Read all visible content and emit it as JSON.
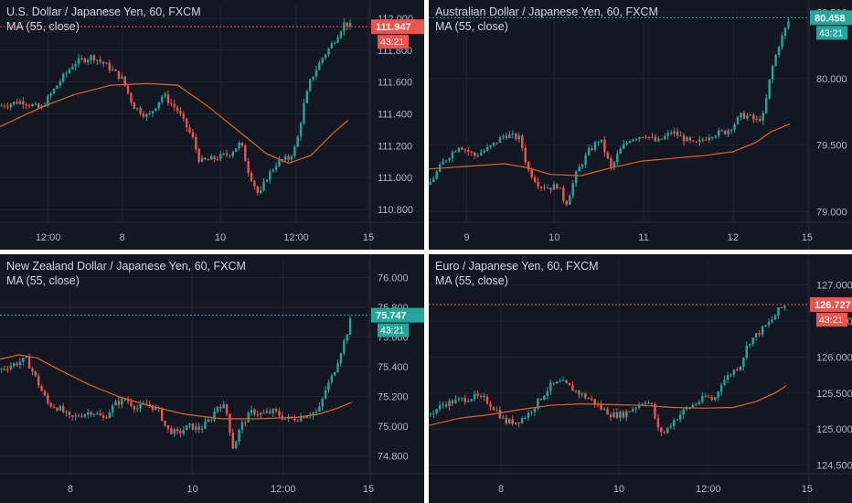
{
  "colors": {
    "background": "#131722",
    "grid": "#1f2433",
    "text": "#b2b5be",
    "up": "#26a69a",
    "down": "#ef5350",
    "ma": "#e0622a",
    "separator": "#ffffff"
  },
  "panels": [
    {
      "id": "usdjpy",
      "title": "U.S. Dollar / Japanese Yen, 60, FXCM",
      "indicator": "MA (55, close)",
      "price_label": "111.947",
      "countdown": "43:21",
      "label_color": "#ef5350",
      "line_color": "#ef5350",
      "chart_data": {
        "type": "candlestick",
        "ylim": [
          110.72,
          112.08
        ],
        "y_ticks": [
          "110.800",
          "111.000",
          "111.200",
          "111.400",
          "111.600",
          "111.800",
          "112.000"
        ],
        "x_ticks": [
          {
            "label": "12:00",
            "pos": 0.13
          },
          {
            "label": "8",
            "pos": 0.33
          },
          {
            "label": "10",
            "pos": 0.595
          },
          {
            "label": "12:00",
            "pos": 0.8
          },
          {
            "label": "15",
            "pos": 0.995
          }
        ],
        "last_price": 111.947,
        "close_path": [
          [
            0,
            111.45
          ],
          [
            0.06,
            111.48
          ],
          [
            0.11,
            111.43
          ],
          [
            0.16,
            111.6
          ],
          [
            0.2,
            111.72
          ],
          [
            0.25,
            111.76
          ],
          [
            0.29,
            111.7
          ],
          [
            0.33,
            111.62
          ],
          [
            0.36,
            111.45
          ],
          [
            0.4,
            111.38
          ],
          [
            0.44,
            111.52
          ],
          [
            0.48,
            111.42
          ],
          [
            0.52,
            111.25
          ],
          [
            0.54,
            111.1
          ],
          [
            0.58,
            111.12
          ],
          [
            0.62,
            111.15
          ],
          [
            0.65,
            111.22
          ],
          [
            0.67,
            111.05
          ],
          [
            0.7,
            110.88
          ],
          [
            0.72,
            111.0
          ],
          [
            0.75,
            111.1
          ],
          [
            0.78,
            111.12
          ],
          [
            0.8,
            111.2
          ],
          [
            0.82,
            111.45
          ],
          [
            0.84,
            111.62
          ],
          [
            0.87,
            111.75
          ],
          [
            0.9,
            111.85
          ],
          [
            0.93,
            111.97
          ],
          [
            0.95,
            111.947
          ]
        ],
        "ma_path": [
          [
            0,
            111.32
          ],
          [
            0.12,
            111.45
          ],
          [
            0.2,
            111.52
          ],
          [
            0.3,
            111.58
          ],
          [
            0.4,
            111.59
          ],
          [
            0.48,
            111.58
          ],
          [
            0.56,
            111.45
          ],
          [
            0.64,
            111.3
          ],
          [
            0.72,
            111.15
          ],
          [
            0.78,
            111.09
          ],
          [
            0.84,
            111.14
          ],
          [
            0.9,
            111.28
          ],
          [
            0.94,
            111.36
          ]
        ]
      }
    },
    {
      "id": "audjpy",
      "title": "Australian Dollar / Japanese Yen, 60, FXCM",
      "indicator": "MA (55, close)",
      "price_label": "80.458",
      "countdown": "43:21",
      "label_color": "#26a69a",
      "line_color": "#26a69a",
      "chart_data": {
        "type": "candlestick",
        "ylim": [
          78.92,
          80.55
        ],
        "y_ticks": [
          "79.000",
          "79.500",
          "80.000",
          "80.500"
        ],
        "x_ticks": [
          {
            "label": "9",
            "pos": 0.1
          },
          {
            "label": "10",
            "pos": 0.33
          },
          {
            "label": "11",
            "pos": 0.565
          },
          {
            "label": "12",
            "pos": 0.8
          },
          {
            "label": "15",
            "pos": 0.995
          }
        ],
        "last_price": 80.458,
        "close_path": [
          [
            0,
            79.2
          ],
          [
            0.04,
            79.38
          ],
          [
            0.08,
            79.5
          ],
          [
            0.12,
            79.42
          ],
          [
            0.16,
            79.48
          ],
          [
            0.2,
            79.58
          ],
          [
            0.24,
            79.55
          ],
          [
            0.26,
            79.32
          ],
          [
            0.29,
            79.2
          ],
          [
            0.32,
            79.18
          ],
          [
            0.34,
            79.2
          ],
          [
            0.36,
            79.05
          ],
          [
            0.39,
            79.3
          ],
          [
            0.42,
            79.45
          ],
          [
            0.45,
            79.55
          ],
          [
            0.48,
            79.32
          ],
          [
            0.5,
            79.45
          ],
          [
            0.53,
            79.55
          ],
          [
            0.57,
            79.58
          ],
          [
            0.6,
            79.52
          ],
          [
            0.64,
            79.6
          ],
          [
            0.67,
            79.55
          ],
          [
            0.7,
            79.5
          ],
          [
            0.74,
            79.58
          ],
          [
            0.78,
            79.6
          ],
          [
            0.8,
            79.65
          ],
          [
            0.82,
            79.72
          ],
          [
            0.84,
            79.72
          ],
          [
            0.86,
            79.68
          ],
          [
            0.88,
            79.72
          ],
          [
            0.9,
            80.05
          ],
          [
            0.92,
            80.25
          ],
          [
            0.95,
            80.458
          ]
        ],
        "ma_path": [
          [
            0,
            79.32
          ],
          [
            0.1,
            79.34
          ],
          [
            0.2,
            79.36
          ],
          [
            0.26,
            79.33
          ],
          [
            0.32,
            79.28
          ],
          [
            0.4,
            79.27
          ],
          [
            0.48,
            79.33
          ],
          [
            0.56,
            79.38
          ],
          [
            0.64,
            79.4
          ],
          [
            0.72,
            79.42
          ],
          [
            0.8,
            79.45
          ],
          [
            0.86,
            79.52
          ],
          [
            0.9,
            79.6
          ],
          [
            0.95,
            79.66
          ]
        ]
      }
    },
    {
      "id": "nzdjpy",
      "title": "New Zealand Dollar / Japanese Yen, 60, FXCM",
      "indicator": "MA (55, close)",
      "price_label": "75.747",
      "countdown": "43:21",
      "label_color": "#26a69a",
      "line_color": "#26a69a",
      "chart_data": {
        "type": "candlestick",
        "ylim": [
          74.68,
          76.12
        ],
        "y_ticks": [
          "74.800",
          "75.000",
          "75.200",
          "75.400",
          "75.600",
          "75.800",
          "76.000"
        ],
        "x_ticks": [
          {
            "label": "8",
            "pos": 0.19
          },
          {
            "label": "10",
            "pos": 0.52
          },
          {
            "label": "12:00",
            "pos": 0.765
          },
          {
            "label": "15",
            "pos": 0.995
          }
        ],
        "last_price": 75.747,
        "close_path": [
          [
            0,
            75.38
          ],
          [
            0.04,
            75.42
          ],
          [
            0.07,
            75.45
          ],
          [
            0.09,
            75.36
          ],
          [
            0.11,
            75.25
          ],
          [
            0.13,
            75.15
          ],
          [
            0.16,
            75.12
          ],
          [
            0.19,
            75.05
          ],
          [
            0.22,
            75.08
          ],
          [
            0.25,
            75.1
          ],
          [
            0.28,
            75.05
          ],
          [
            0.31,
            75.15
          ],
          [
            0.34,
            75.18
          ],
          [
            0.37,
            75.12
          ],
          [
            0.4,
            75.15
          ],
          [
            0.43,
            75.1
          ],
          [
            0.45,
            74.98
          ],
          [
            0.48,
            74.95
          ],
          [
            0.51,
            75.0
          ],
          [
            0.54,
            74.98
          ],
          [
            0.57,
            75.05
          ],
          [
            0.59,
            75.15
          ],
          [
            0.61,
            75.12
          ],
          [
            0.63,
            74.85
          ],
          [
            0.65,
            75.0
          ],
          [
            0.68,
            75.1
          ],
          [
            0.71,
            75.08
          ],
          [
            0.74,
            75.1
          ],
          [
            0.77,
            75.05
          ],
          [
            0.8,
            75.05
          ],
          [
            0.83,
            75.08
          ],
          [
            0.86,
            75.1
          ],
          [
            0.88,
            75.25
          ],
          [
            0.9,
            75.35
          ],
          [
            0.92,
            75.5
          ],
          [
            0.94,
            75.65
          ],
          [
            0.95,
            75.747
          ]
        ],
        "ma_path": [
          [
            0,
            75.45
          ],
          [
            0.05,
            75.48
          ],
          [
            0.1,
            75.46
          ],
          [
            0.16,
            75.38
          ],
          [
            0.24,
            75.28
          ],
          [
            0.32,
            75.2
          ],
          [
            0.4,
            75.14
          ],
          [
            0.5,
            75.08
          ],
          [
            0.6,
            75.05
          ],
          [
            0.7,
            75.05
          ],
          [
            0.8,
            75.06
          ],
          [
            0.86,
            75.08
          ],
          [
            0.91,
            75.12
          ],
          [
            0.95,
            75.16
          ]
        ]
      }
    },
    {
      "id": "eurjpy",
      "title": "Euro / Japanese Yen, 60, FXCM",
      "indicator": "MA (55, close)",
      "price_label": "126.727",
      "countdown": "43:21",
      "label_color": "#ef5350",
      "line_color": "#ef5350",
      "chart_data": {
        "type": "candlestick",
        "ylim": [
          124.38,
          127.35
        ],
        "y_ticks": [
          "124.500",
          "125.000",
          "125.500",
          "126.000",
          "126.500",
          "127.000"
        ],
        "x_ticks": [
          {
            "label": "8",
            "pos": 0.19
          },
          {
            "label": "10",
            "pos": 0.5
          },
          {
            "label": "12:00",
            "pos": 0.735
          },
          {
            "label": "15",
            "pos": 0.995
          }
        ],
        "last_price": 126.727,
        "close_path": [
          [
            0,
            125.2
          ],
          [
            0.04,
            125.35
          ],
          [
            0.08,
            125.4
          ],
          [
            0.12,
            125.45
          ],
          [
            0.15,
            125.4
          ],
          [
            0.18,
            125.25
          ],
          [
            0.2,
            125.1
          ],
          [
            0.23,
            125.1
          ],
          [
            0.26,
            125.2
          ],
          [
            0.29,
            125.4
          ],
          [
            0.32,
            125.6
          ],
          [
            0.35,
            125.65
          ],
          [
            0.38,
            125.55
          ],
          [
            0.41,
            125.45
          ],
          [
            0.43,
            125.4
          ],
          [
            0.45,
            125.3
          ],
          [
            0.48,
            125.2
          ],
          [
            0.51,
            125.2
          ],
          [
            0.54,
            125.3
          ],
          [
            0.57,
            125.4
          ],
          [
            0.59,
            125.3
          ],
          [
            0.6,
            125.0
          ],
          [
            0.62,
            124.95
          ],
          [
            0.64,
            125.1
          ],
          [
            0.67,
            125.25
          ],
          [
            0.7,
            125.35
          ],
          [
            0.73,
            125.45
          ],
          [
            0.75,
            125.4
          ],
          [
            0.77,
            125.65
          ],
          [
            0.8,
            125.8
          ],
          [
            0.82,
            125.9
          ],
          [
            0.84,
            126.2
          ],
          [
            0.86,
            126.3
          ],
          [
            0.88,
            126.4
          ],
          [
            0.9,
            126.5
          ],
          [
            0.92,
            126.65
          ],
          [
            0.94,
            126.727
          ]
        ],
        "ma_path": [
          [
            0,
            125.05
          ],
          [
            0.08,
            125.15
          ],
          [
            0.16,
            125.2
          ],
          [
            0.24,
            125.27
          ],
          [
            0.32,
            125.33
          ],
          [
            0.4,
            125.35
          ],
          [
            0.48,
            125.34
          ],
          [
            0.56,
            125.33
          ],
          [
            0.64,
            125.3
          ],
          [
            0.72,
            125.29
          ],
          [
            0.8,
            125.3
          ],
          [
            0.86,
            125.38
          ],
          [
            0.91,
            125.5
          ],
          [
            0.94,
            125.6
          ]
        ]
      }
    }
  ]
}
